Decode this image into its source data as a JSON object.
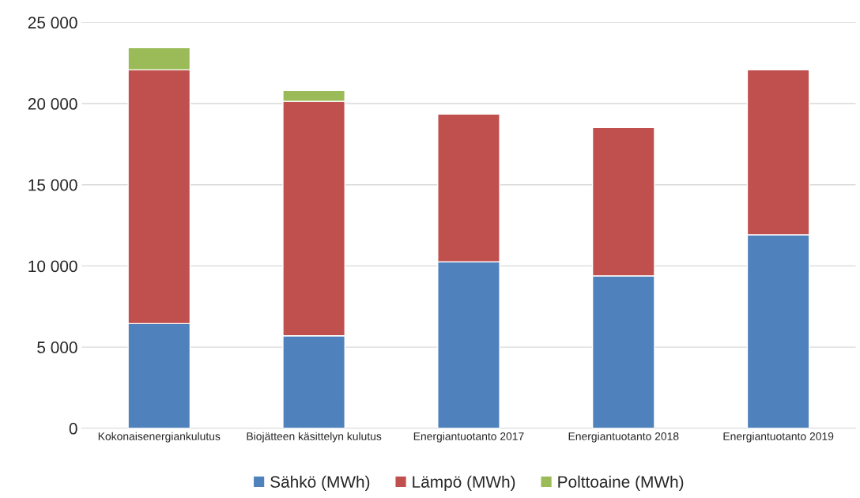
{
  "chart_data": {
    "type": "bar",
    "stacked": true,
    "categories": [
      "Kokonaisenergiankulutus",
      "Biojätteen käsittelyn kulutus",
      "Energiantuotanto 2017",
      "Energiantuotanto 2018",
      "Energiantuotanto 2019"
    ],
    "series": [
      {
        "name": "Sähkö (MWh)",
        "color": "#4f81bd",
        "values": [
          6450,
          5700,
          10260,
          9390,
          11920
        ]
      },
      {
        "name": "Lämpö (MWh)",
        "color": "#c0504d",
        "values": [
          15630,
          14440,
          9100,
          9140,
          10160
        ]
      },
      {
        "name": "Polttoaine (MWh)",
        "color": "#9bbb59",
        "values": [
          1360,
          680,
          null,
          null,
          null
        ]
      }
    ],
    "ylim": [
      0,
      25000
    ],
    "yticks": [
      0,
      {
        "value": 5000,
        "label": "5 000"
      },
      {
        "value": 10000,
        "label": "10 000"
      },
      {
        "value": 15000,
        "label": "15 000"
      },
      {
        "value": 20000,
        "label": "20 000"
      },
      {
        "value": 25000,
        "label": "25 000"
      }
    ],
    "grid": "y",
    "legend": "bottom"
  }
}
